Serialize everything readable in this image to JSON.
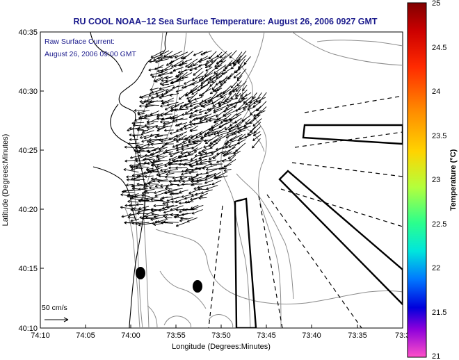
{
  "title": "RU COOL  NOAA−12  Sea Surface Temperature:  August 26, 2006 0927 GMT",
  "annotation": {
    "line1": "Raw Surface Current:",
    "line2": "August 26, 2006 09:00 GMT"
  },
  "scale_label": "50 cm/s",
  "xlabel": "Longitude (Degrees:Minutes)",
  "ylabel": "Latitude (Degrees:Minutes)",
  "x_ticks": [
    "74:10",
    "74:05",
    "74:00",
    "73:55",
    "73:50",
    "73:45",
    "73:40",
    "73:35",
    "73:3"
  ],
  "y_ticks": [
    "40:35",
    "40:30",
    "40:25",
    "40:20",
    "40:15",
    "40:10"
  ],
  "colorbar": {
    "label": "Temperature (°C)",
    "ticks": [
      "25",
      "24.5",
      "24",
      "23.5",
      "23",
      "22.5",
      "22",
      "21.5",
      "21"
    ],
    "range": [
      21,
      25
    ]
  },
  "colors": {
    "title": "#1a1a8c",
    "annotation": "#1a1a8c",
    "land": "#ffffff",
    "bathymetry": "#8c8c8c"
  },
  "chart_data": {
    "type": "vector_field_map",
    "x_axis": "Longitude",
    "y_axis": "Latitude",
    "xlim": [
      "74:10",
      "73:30"
    ],
    "ylim": [
      "40:10",
      "40:35"
    ],
    "scale_vector": "50 cm/s",
    "colorbar_range_c": [
      21,
      25
    ],
    "grid": false
  }
}
